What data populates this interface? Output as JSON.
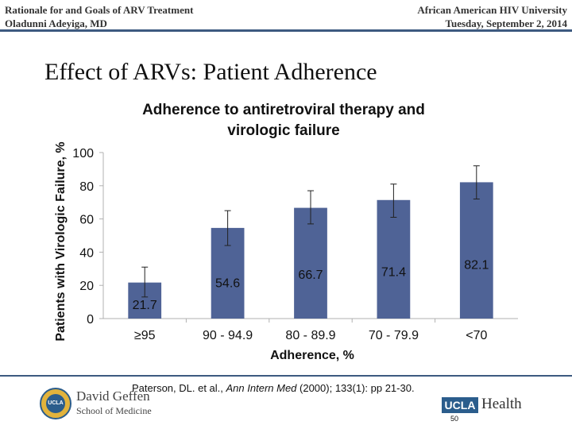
{
  "header": {
    "left_line1": "Rationale for and Goals of ARV Treatment",
    "left_line2": "Oladunni Adeyiga, MD",
    "right_line1": "African American HIV University",
    "right_line2": "Tuesday, September 2, 2014"
  },
  "slide_title": "Effect of ARVs:  Patient Adherence",
  "chart_data": {
    "type": "bar",
    "title_line1": "Adherence to antiretroviral therapy and",
    "title_line2": "virologic failure",
    "xlabel": "Adherence, %",
    "ylabel": "Patients with Virologic Failure, %",
    "categories": [
      "≥95",
      "90 - 94.9",
      "80 - 89.9",
      "70 - 79.9",
      "<70"
    ],
    "values": [
      21.7,
      54.6,
      66.7,
      71.4,
      82.1
    ],
    "value_labels": [
      "21.7",
      "54.6",
      "66.7",
      "71.4",
      "82.1"
    ],
    "error_low": [
      13,
      44,
      57,
      61,
      72
    ],
    "error_high": [
      31,
      65,
      77,
      81,
      92
    ],
    "yticks": [
      "0",
      "20",
      "40",
      "60",
      "80",
      "100"
    ],
    "ylim": [
      0,
      100
    ],
    "grid": false,
    "bar_color": "#4f6396"
  },
  "footer": {
    "citation_prefix": "Paterson, DL. et al., ",
    "citation_journal": "Ann Intern Med",
    "citation_suffix": " (2000); 133(1):  pp 21-30.",
    "geffen_name": "David Geffen",
    "geffen_sub": "School of Medicine",
    "seal_text": "UCLA",
    "ucla_logo": "UCLA",
    "health_text": "Health",
    "page_number": "50"
  }
}
